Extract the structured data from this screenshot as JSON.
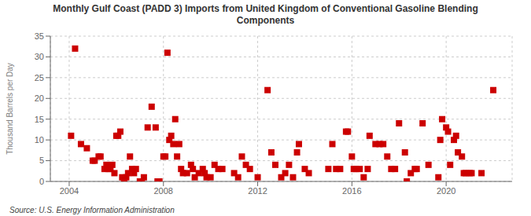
{
  "chart_data": {
    "type": "scatter",
    "title": "Monthly Gulf Coast (PADD 3) Imports from United Kingdom of Conventional Gasoline Blending\nComponents",
    "ylabel": "Thousand Barrels per Day",
    "source": "Source: U.S. Energy Information Administration",
    "color": "#cc0000",
    "marker": "square",
    "grid": true,
    "xlim": [
      2003.2,
      2022.8
    ],
    "xticks": [
      2004,
      2008,
      2012,
      2016,
      2020
    ],
    "ylim": [
      0,
      35
    ],
    "yticks": [
      0,
      5,
      10,
      15,
      20,
      25,
      30,
      35
    ],
    "x": [
      2004.08,
      2004.25,
      2004.5,
      2004.75,
      2005.0,
      2005.08,
      2005.25,
      2005.33,
      2005.5,
      2005.58,
      2005.67,
      2005.75,
      2005.83,
      2005.92,
      2006.0,
      2006.08,
      2006.17,
      2006.25,
      2006.33,
      2006.42,
      2006.5,
      2006.58,
      2006.67,
      2006.75,
      2006.83,
      2007.0,
      2007.08,
      2007.17,
      2007.33,
      2007.5,
      2007.67,
      2007.75,
      2007.83,
      2008.0,
      2008.08,
      2008.17,
      2008.25,
      2008.33,
      2008.42,
      2008.5,
      2008.58,
      2008.67,
      2008.75,
      2008.83,
      2009.0,
      2009.17,
      2009.25,
      2009.33,
      2009.5,
      2009.67,
      2009.75,
      2009.83,
      2010.0,
      2010.17,
      2010.33,
      2010.5,
      2011.0,
      2011.17,
      2011.33,
      2011.5,
      2011.67,
      2012.0,
      2012.42,
      2012.58,
      2012.75,
      2013.0,
      2013.17,
      2013.33,
      2013.5,
      2013.67,
      2013.75,
      2014.0,
      2014.17,
      2015.0,
      2015.17,
      2015.33,
      2015.5,
      2015.75,
      2015.83,
      2016.0,
      2016.08,
      2016.17,
      2016.33,
      2016.5,
      2016.67,
      2016.75,
      2017.0,
      2017.17,
      2017.33,
      2017.5,
      2017.67,
      2017.83,
      2018.0,
      2018.25,
      2018.33,
      2018.5,
      2018.67,
      2018.75,
      2019.0,
      2019.25,
      2019.67,
      2019.75,
      2019.83,
      2020.0,
      2020.08,
      2020.17,
      2020.33,
      2020.42,
      2020.5,
      2020.67,
      2020.75,
      2020.83,
      2021.0,
      2021.08,
      2021.5,
      2022.0
    ],
    "values": [
      11,
      32,
      9,
      8,
      5,
      5,
      6,
      6,
      3,
      4,
      3,
      3,
      4,
      2,
      11,
      11,
      12,
      1,
      0,
      1,
      2,
      6,
      3,
      2,
      3,
      0,
      0,
      1,
      13,
      18,
      13,
      0,
      0,
      6,
      6,
      31,
      10,
      11,
      9,
      15,
      6,
      9,
      3,
      2,
      2,
      4,
      3,
      1,
      2,
      3,
      2,
      1,
      1,
      4,
      3,
      3,
      2,
      1,
      6,
      4,
      3,
      1,
      22,
      7,
      4,
      1,
      2,
      4,
      1,
      7,
      9,
      3,
      2,
      3,
      9,
      3,
      3,
      12,
      12,
      6,
      3,
      3,
      3,
      1,
      3,
      11,
      9,
      9,
      9,
      6,
      3,
      3,
      14,
      7,
      0,
      2,
      3,
      3,
      14,
      4,
      1,
      10,
      15,
      13,
      12,
      4,
      10,
      11,
      7,
      6,
      2,
      2,
      2,
      2,
      2,
      22
    ]
  }
}
